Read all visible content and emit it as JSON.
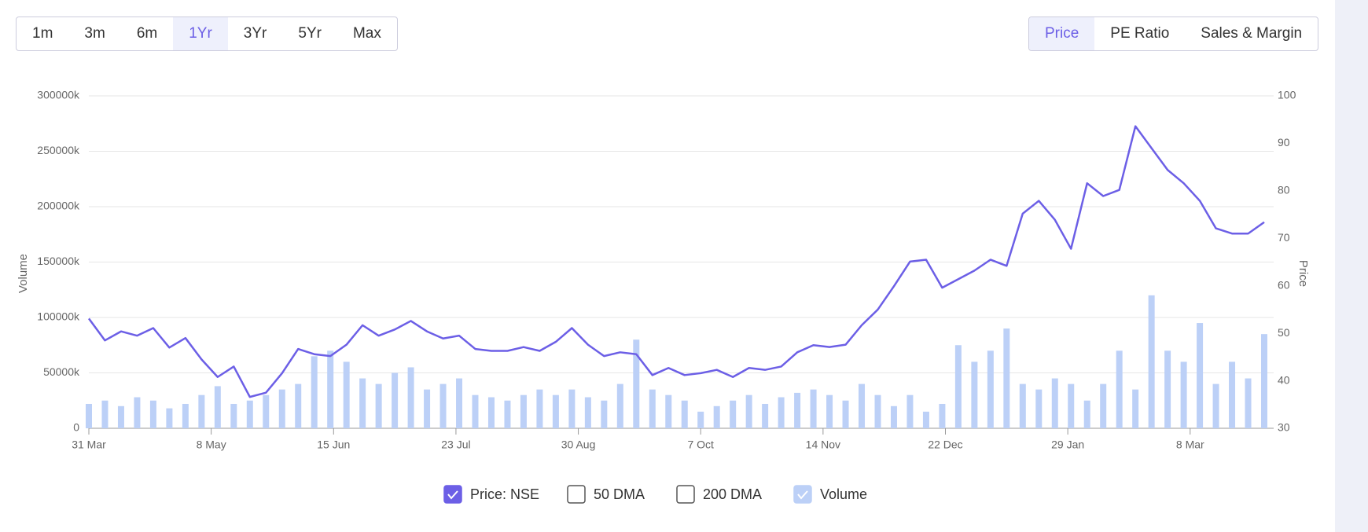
{
  "controls": {
    "periods": [
      "1m",
      "3m",
      "6m",
      "1Yr",
      "3Yr",
      "5Yr",
      "Max"
    ],
    "active_period": 3,
    "views": [
      "Price",
      "PE Ratio",
      "Sales & Margin"
    ],
    "active_view": 0
  },
  "chart_data": {
    "type": "bar-line",
    "ylabel": "Volume",
    "y2label": "Price",
    "xlim": [
      0,
      365
    ],
    "xticks": [
      {
        "value": 0,
        "label": "31 Mar"
      },
      {
        "value": 38,
        "label": "8 May"
      },
      {
        "value": 76,
        "label": "15 Jun"
      },
      {
        "value": 114,
        "label": "23 Jul"
      },
      {
        "value": 152,
        "label": "30 Aug"
      },
      {
        "value": 190,
        "label": "7 Oct"
      },
      {
        "value": 228,
        "label": "14 Nov"
      },
      {
        "value": 266,
        "label": "22 Dec"
      },
      {
        "value": 304,
        "label": "29 Jan"
      },
      {
        "value": 342,
        "label": "8 Mar"
      }
    ],
    "ylim": [
      0,
      300000
    ],
    "yticks": [
      0,
      {
        "value": 50000,
        "label": "50000k"
      },
      {
        "value": 100000,
        "label": "100000k"
      },
      {
        "value": 150000,
        "label": "150000k"
      },
      {
        "value": 200000,
        "label": "200000k"
      },
      {
        "value": 250000,
        "label": "250000k"
      },
      {
        "value": 300000,
        "label": "300000k"
      }
    ],
    "y2lim": [
      30,
      100
    ],
    "y2ticks": [
      30,
      40,
      50,
      60,
      70,
      80,
      90,
      100
    ],
    "grid": true,
    "x": [
      0,
      5,
      10,
      15,
      20,
      25,
      30,
      35,
      40,
      45,
      50,
      55,
      60,
      65,
      70,
      75,
      80,
      85,
      90,
      95,
      100,
      105,
      110,
      115,
      120,
      125,
      130,
      135,
      140,
      145,
      150,
      155,
      160,
      165,
      170,
      175,
      180,
      185,
      190,
      195,
      200,
      205,
      210,
      215,
      220,
      225,
      230,
      235,
      240,
      245,
      250,
      255,
      260,
      265,
      270,
      275,
      280,
      285,
      290,
      295,
      300,
      305,
      310,
      315,
      320,
      325,
      330,
      335,
      340,
      345,
      350,
      355,
      360,
      365
    ],
    "series": [
      {
        "name": "Volume",
        "kind": "bar",
        "axis": "y",
        "color": "#bcd0f7",
        "checked": true,
        "values": [
          22000,
          25000,
          20000,
          28000,
          25000,
          18000,
          22000,
          30000,
          38000,
          22000,
          25000,
          30000,
          35000,
          40000,
          65000,
          70000,
          60000,
          45000,
          40000,
          50000,
          55000,
          35000,
          40000,
          45000,
          30000,
          28000,
          25000,
          30000,
          35000,
          30000,
          35000,
          28000,
          25000,
          40000,
          80000,
          35000,
          30000,
          25000,
          15000,
          20000,
          25000,
          30000,
          22000,
          28000,
          32000,
          35000,
          30000,
          25000,
          40000,
          30000,
          20000,
          30000,
          15000,
          22000,
          75000,
          60000,
          70000,
          90000,
          40000,
          35000,
          45000,
          40000,
          25000,
          40000,
          70000,
          35000,
          120000,
          70000,
          60000,
          95000,
          40000,
          60000,
          45000,
          85000
        ]
      },
      {
        "name": "Price: NSE",
        "kind": "line",
        "axis": "y2",
        "color": "#6c5fe6",
        "checked": true,
        "values": [
          53.1,
          48.5,
          50.4,
          49.5,
          51.1,
          47,
          49,
          44.5,
          40.8,
          43,
          36.6,
          37.5,
          41.6,
          46.7,
          45.6,
          45.2,
          47.6,
          51.7,
          49.5,
          50.8,
          52.6,
          50.4,
          48.9,
          49.5,
          46.7,
          46.3,
          46.3,
          47.1,
          46.3,
          48.2,
          51.1,
          47.6,
          45.2,
          46,
          45.6,
          41.2,
          42.7,
          41.2,
          41.6,
          42.3,
          40.8,
          42.7,
          42.3,
          43,
          46,
          47.5,
          47.1,
          47.6,
          51.7,
          55,
          59.9,
          65.1,
          65.5,
          59.6,
          61.4,
          63.2,
          65.5,
          64.2,
          75.2,
          77.9,
          73.9,
          67.8,
          81.6,
          78.9,
          80.2,
          93.6,
          89,
          84.4,
          81.6,
          77.9,
          72.1,
          71,
          71,
          73.4
        ]
      }
    ],
    "hidden_series": [
      "50 DMA",
      "200 DMA"
    ],
    "legend_order": [
      "Price: NSE",
      "50 DMA",
      "200 DMA",
      "Volume"
    ]
  }
}
